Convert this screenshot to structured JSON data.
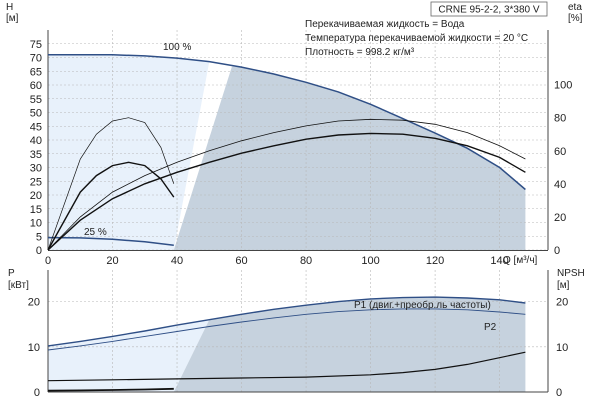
{
  "info": {
    "model": "CRNE 95-2-2, 3*380 V",
    "line1": "Перекачиваемая жидкость = Вода",
    "line2": "Температура перекачиваемой жидкости = 20 °C",
    "line3": "Плотность = 998.2 кг/м³"
  },
  "colors": {
    "hq_curve": "#2f4f86",
    "region_fill": "#c6d2de",
    "region_light": "#e8f1fb",
    "curve_black": "#111111"
  },
  "chart_data": [
    {
      "type": "line",
      "name": "performance",
      "xlabel": "Q [м³/ч]",
      "ylabel_left": "H\n[м]",
      "ylabel_right": "eta\n[%]",
      "x_ticks": [
        0,
        20,
        40,
        60,
        80,
        100,
        120,
        140
      ],
      "y_ticks": [
        0,
        5,
        10,
        15,
        20,
        25,
        30,
        35,
        40,
        45,
        50,
        55,
        60,
        65,
        70,
        75
      ],
      "y2_ticks": [
        0,
        20,
        40,
        60,
        80,
        100
      ],
      "xlim": [
        0,
        155
      ],
      "ylim": [
        0,
        80
      ],
      "y2lim": [
        0,
        133
      ],
      "grid": true,
      "speed_labels": [
        "100 %",
        "25 %"
      ],
      "series": [
        {
          "key": "H_100",
          "axis": "left",
          "x": [
            0,
            10,
            20,
            30,
            40,
            50,
            60,
            70,
            80,
            90,
            100,
            110,
            120,
            130,
            140,
            148
          ],
          "y": [
            71,
            71,
            71,
            70.6,
            69.8,
            68.5,
            66.5,
            64,
            61,
            57.5,
            53,
            47.8,
            42.5,
            37,
            30,
            22
          ]
        },
        {
          "key": "H_25",
          "axis": "left",
          "x": [
            0,
            10,
            20,
            30,
            39
          ],
          "y": [
            4.5,
            4.4,
            3.9,
            3,
            1.7
          ]
        },
        {
          "key": "eta_100_upper",
          "axis": "right",
          "x": [
            0,
            10,
            20,
            30,
            40,
            50,
            60,
            70,
            80,
            90,
            100,
            110,
            120,
            130,
            140,
            148
          ],
          "y": [
            0,
            20,
            35,
            45,
            53,
            60,
            66,
            71,
            75,
            78,
            79,
            78.5,
            76,
            71,
            63,
            55
          ]
        },
        {
          "key": "eta_100_lower",
          "axis": "right",
          "x": [
            0,
            10,
            20,
            30,
            40,
            50,
            60,
            70,
            80,
            90,
            100,
            110,
            120,
            130,
            140,
            148
          ],
          "y": [
            0,
            18,
            31,
            40,
            47,
            53,
            58.5,
            63,
            67,
            69.5,
            70.5,
            70,
            67.5,
            63,
            56,
            47
          ]
        },
        {
          "key": "eta_25_upper",
          "axis": "right",
          "x": [
            0,
            10,
            15,
            20,
            25,
            30,
            35,
            39
          ],
          "y": [
            0,
            55,
            70,
            78,
            80,
            77,
            62,
            40
          ]
        },
        {
          "key": "eta_25_lower",
          "axis": "right",
          "x": [
            0,
            10,
            15,
            20,
            25,
            30,
            35,
            39
          ],
          "y": [
            0,
            35,
            45,
            51,
            53,
            51,
            43,
            32
          ]
        }
      ]
    },
    {
      "type": "line",
      "name": "power_npsh",
      "ylabel_left": "P\n[кВт]",
      "ylabel_right": "NPSH\n[м]",
      "y_ticks": [
        0,
        10,
        20
      ],
      "y2_ticks": [
        0,
        10,
        20
      ],
      "xlim": [
        0,
        155
      ],
      "ylim": [
        0,
        27
      ],
      "y2lim": [
        0,
        27
      ],
      "grid": true,
      "series": [
        {
          "key": "P1",
          "name": "P1 (двиг.+преобр.ль частоты)",
          "x": [
            0,
            10,
            20,
            30,
            40,
            50,
            60,
            70,
            80,
            90,
            100,
            110,
            120,
            130,
            140,
            148
          ],
          "y": [
            10.2,
            11.2,
            12.3,
            13.5,
            14.8,
            16,
            17.2,
            18.3,
            19.2,
            20,
            20.6,
            20.9,
            21,
            20.8,
            20.4,
            19.7
          ]
        },
        {
          "key": "P2",
          "name": "P2",
          "x": [
            0,
            10,
            20,
            30,
            40,
            50,
            60,
            70,
            80,
            90,
            100,
            110,
            120,
            130,
            140,
            148
          ],
          "y": [
            9.3,
            10.2,
            11.2,
            12.3,
            13.4,
            14.5,
            15.5,
            16.4,
            17.2,
            17.8,
            18.2,
            18.4,
            18.4,
            18.2,
            17.7,
            17.2
          ]
        },
        {
          "key": "NPSH",
          "axis": "right",
          "x": [
            0,
            20,
            40,
            60,
            80,
            100,
            110,
            120,
            130,
            140,
            148
          ],
          "y": [
            2.5,
            2.7,
            2.9,
            3.1,
            3.3,
            3.8,
            4.3,
            5,
            6.1,
            7.6,
            8.8
          ]
        },
        {
          "key": "P_25",
          "x": [
            0,
            10,
            20,
            30,
            39
          ],
          "y": [
            0.3,
            0.35,
            0.45,
            0.55,
            0.7
          ]
        }
      ]
    }
  ]
}
